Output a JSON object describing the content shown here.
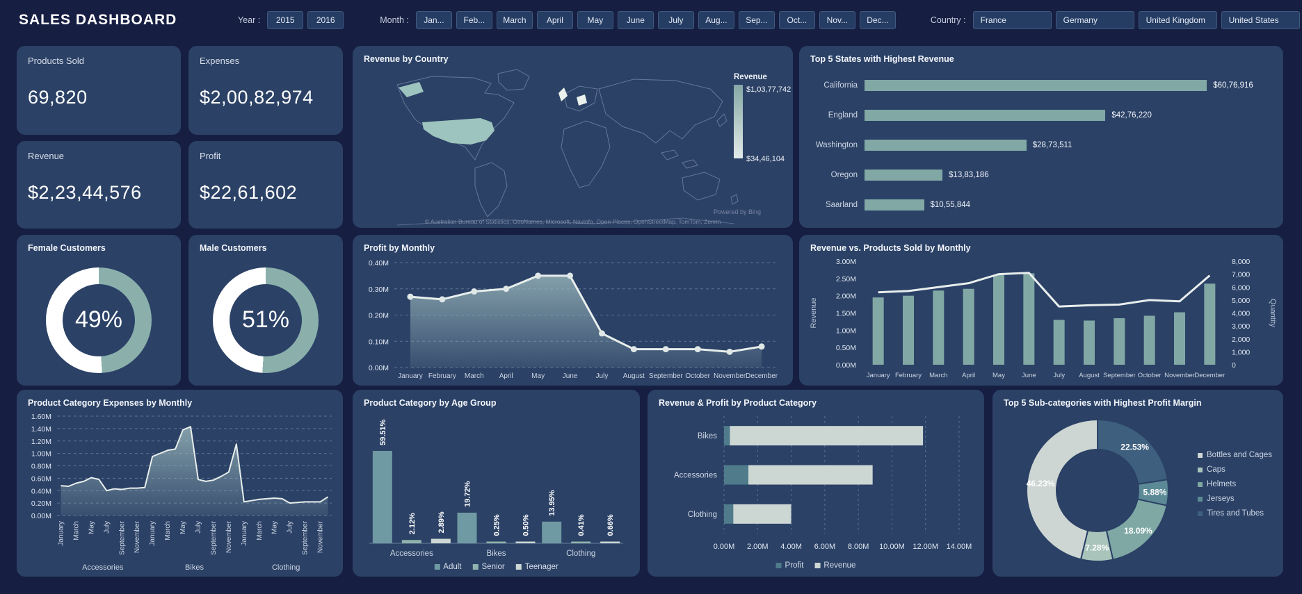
{
  "header": {
    "title": "SALES DASHBOARD",
    "year_label": "Year :",
    "years": [
      "2015",
      "2016"
    ],
    "month_label": "Month :",
    "months": [
      "Jan...",
      "Feb...",
      "March",
      "April",
      "May",
      "June",
      "July",
      "Aug...",
      "Sep...",
      "Oct...",
      "Nov...",
      "Dec..."
    ],
    "country_label": "Country :",
    "countries": [
      "France",
      "Germany",
      "United Kingdom",
      "United States"
    ]
  },
  "kpis": [
    {
      "label": "Products Sold",
      "value": "69,820"
    },
    {
      "label": "Expenses",
      "value": "$2,00,82,974"
    },
    {
      "label": "Revenue",
      "value": "$2,23,44,576"
    },
    {
      "label": "Profit",
      "value": "$22,61,602"
    }
  ],
  "colors": {
    "teal": "#82a8a5",
    "light": "#ccd7d4",
    "line": "#e8eeec",
    "area": "#9ab7bb",
    "profit_seg": "#4f7b8b",
    "adult": "#6f9aa3",
    "senior": "#8fb4ae",
    "teenager": "#ccd7d4",
    "ring": "#8bb0ac",
    "map_high": "#9dc4be",
    "map_low": "#ebf1ec",
    "panel": "#2b4166"
  },
  "chart_data": [
    {
      "type": "choropleth",
      "title": "Revenue by Country",
      "legend": {
        "title": "Revenue",
        "max": "$1,03,77,742",
        "min": "$34,46,104"
      },
      "highlighted": [
        {
          "country": "United States",
          "level": "high"
        },
        {
          "country": "United Kingdom",
          "level": "low"
        },
        {
          "country": "Germany",
          "level": "low"
        }
      ],
      "attribution": "© Australian Bureau of Statistics, GeoNames, Microsoft, Navinfo, Open Places, OpenStreetMap, TomTom, Zenrin",
      "powered_by": "Powered by Bing"
    },
    {
      "type": "bar-h",
      "title": "Top 5 States with Highest Revenue",
      "categories": [
        "California",
        "England",
        "Washington",
        "Oregon",
        "Saarland"
      ],
      "values": [
        6076916,
        4276220,
        2873511,
        1383186,
        1055844
      ],
      "labels": [
        "$60,76,916",
        "$42,76,220",
        "$28,73,511",
        "$13,83,186",
        "$10,55,844"
      ]
    },
    {
      "type": "donut",
      "title": "Female Customers",
      "value_pct": 49,
      "label": "49%"
    },
    {
      "type": "donut",
      "title": "Male Customers",
      "value_pct": 51,
      "label": "51%"
    },
    {
      "type": "area",
      "title": "Profit by Monthly",
      "x": [
        "January",
        "February",
        "March",
        "April",
        "May",
        "June",
        "July",
        "August",
        "September",
        "October",
        "November",
        "December"
      ],
      "values_M": [
        0.27,
        0.26,
        0.29,
        0.3,
        0.35,
        0.35,
        0.13,
        0.07,
        0.07,
        0.07,
        0.06,
        0.08
      ],
      "ylim": [
        0,
        0.4
      ],
      "yticks": [
        "0.00M",
        "0.10M",
        "0.20M",
        "0.30M",
        "0.40M"
      ],
      "dots": true
    },
    {
      "type": "combo",
      "title": "Revenue vs. Products Sold by Monthly",
      "x": [
        "January",
        "February",
        "March",
        "April",
        "May",
        "June",
        "July",
        "August",
        "September",
        "October",
        "November",
        "December"
      ],
      "bars": {
        "name": "Revenue",
        "values_M": [
          1.95,
          2.0,
          2.15,
          2.2,
          2.6,
          2.65,
          1.3,
          1.28,
          1.35,
          1.42,
          1.52,
          2.35
        ]
      },
      "line": {
        "name": "Quantity",
        "values": [
          5600,
          5700,
          6000,
          6300,
          7000,
          7100,
          4500,
          4600,
          4650,
          5000,
          4900,
          6900
        ]
      },
      "left_axis": {
        "label": "Revenue",
        "lim": [
          0,
          3
        ],
        "ticks": [
          "0.00M",
          "0.50M",
          "1.00M",
          "1.50M",
          "2.00M",
          "2.50M",
          "3.00M"
        ]
      },
      "right_axis": {
        "label": "Quantity",
        "lim": [
          0,
          8000
        ],
        "ticks": [
          "0",
          "1,000",
          "2,000",
          "3,000",
          "4,000",
          "5,000",
          "6,000",
          "7,000",
          "8,000"
        ]
      }
    },
    {
      "type": "area",
      "title": "Product Category Expenses by Monthly",
      "groups": [
        "Accessories",
        "Bikes",
        "Clothing"
      ],
      "month_ticks": [
        "January",
        "March",
        "May",
        "July",
        "September",
        "November"
      ],
      "values_M": [
        0.48,
        0.47,
        0.52,
        0.55,
        0.61,
        0.58,
        0.4,
        0.43,
        0.42,
        0.44,
        0.44,
        0.45,
        0.95,
        1.0,
        1.05,
        1.07,
        1.38,
        1.43,
        0.58,
        0.55,
        0.57,
        0.63,
        0.7,
        1.15,
        0.22,
        0.24,
        0.26,
        0.27,
        0.28,
        0.27,
        0.2,
        0.21,
        0.22,
        0.22,
        0.22,
        0.3
      ],
      "ylim": [
        0,
        1.6
      ],
      "yticks": [
        "0.00M",
        "0.20M",
        "0.40M",
        "0.60M",
        "0.80M",
        "1.00M",
        "1.20M",
        "1.40M",
        "1.60M"
      ],
      "dots": false
    },
    {
      "type": "grouped-bar",
      "title": "Product Category by Age Group",
      "categories": [
        "Accessories",
        "Bikes",
        "Clothing"
      ],
      "series": [
        {
          "name": "Adult",
          "values_pct": [
            59.51,
            19.72,
            13.95
          ],
          "labels": [
            "59.51%",
            "19.72%",
            "13.95%"
          ]
        },
        {
          "name": "Senior",
          "values_pct": [
            2.12,
            0.25,
            0.41
          ],
          "labels": [
            "2.12%",
            "0.25%",
            "0.41%"
          ]
        },
        {
          "name": "Teenager",
          "values_pct": [
            2.89,
            0.5,
            0.66
          ],
          "labels": [
            "2.89%",
            "0.50%",
            "0.66%"
          ]
        }
      ]
    },
    {
      "type": "stacked-bar-h",
      "title": "Revenue & Profit by Product Category",
      "categories": [
        "Bikes",
        "Accessories",
        "Clothing"
      ],
      "series": [
        {
          "name": "Profit",
          "values_M": [
            0.35,
            1.45,
            0.55
          ]
        },
        {
          "name": "Revenue",
          "values_M": [
            11.5,
            7.4,
            3.45
          ]
        }
      ],
      "xlim": [
        0,
        14
      ],
      "xticks": [
        "0.00M",
        "2.00M",
        "4.00M",
        "6.00M",
        "8.00M",
        "10.00M",
        "12.00M",
        "14.00M"
      ]
    },
    {
      "type": "donut-multi",
      "title": "Top 5 Sub-categories with Highest Profit Margin",
      "slices": [
        {
          "name": "Tires and Tubes",
          "pct": 22.53,
          "label": "22.53%",
          "color": "#3e5f7e"
        },
        {
          "name": "Jerseys",
          "pct": 5.88,
          "label": "5.88%",
          "color": "#5b8995"
        },
        {
          "name": "Helmets",
          "pct": 18.09,
          "label": "18.09%",
          "color": "#7fa8a5"
        },
        {
          "name": "Caps",
          "pct": 7.28,
          "label": "7.28%",
          "color": "#a9c4ba"
        },
        {
          "name": "Bottles and Cages",
          "pct": 46.23,
          "label": "46.23%",
          "color": "#cdd6d3"
        }
      ],
      "legend_order": [
        "Bottles and Cages",
        "Caps",
        "Helmets",
        "Jerseys",
        "Tires and Tubes"
      ]
    }
  ]
}
